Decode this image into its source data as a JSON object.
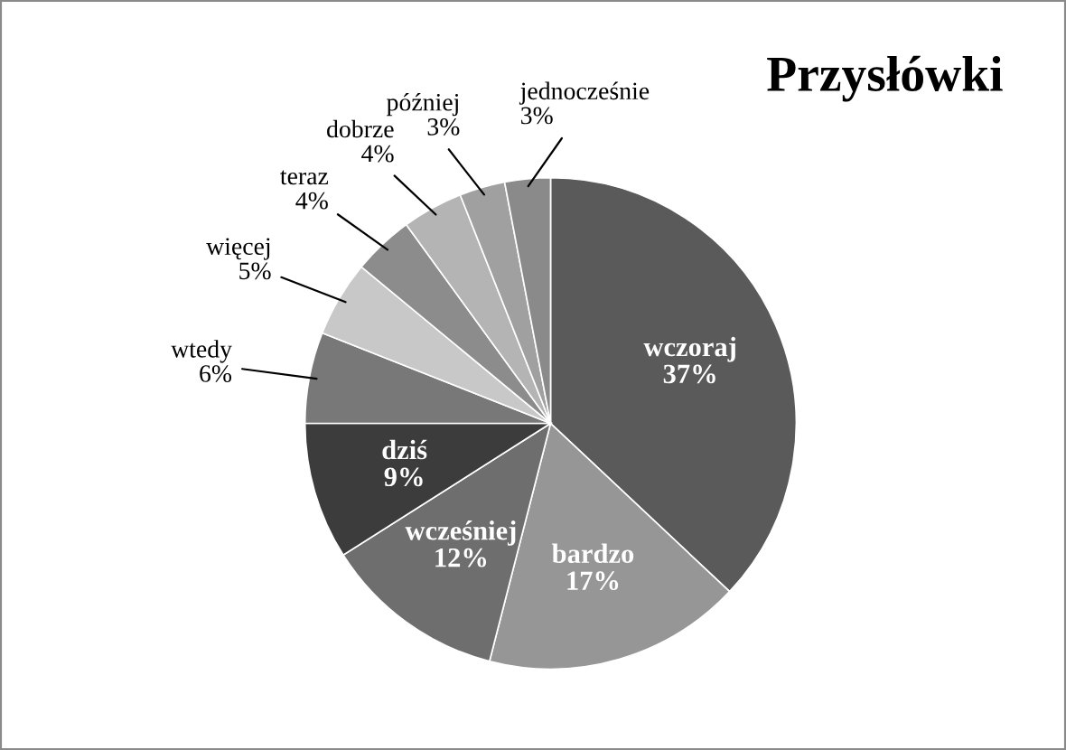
{
  "chart_data": {
    "type": "pie",
    "title": "Przysłówki",
    "categories": [
      "wczoraj",
      "bardzo",
      "wcześniej",
      "dziś",
      "wtedy",
      "więcej",
      "teraz",
      "dobrze",
      "później",
      "jednocześnie"
    ],
    "values": [
      37,
      17,
      12,
      9,
      6,
      5,
      4,
      4,
      3,
      3
    ],
    "value_labels": [
      "37%",
      "17%",
      "12%",
      "9%",
      "6%",
      "5%",
      "4%",
      "4%",
      "3%",
      "3%"
    ],
    "colors": [
      "#5a5a5a",
      "#969696",
      "#6e6e6e",
      "#3c3c3c",
      "#787878",
      "#c8c8c8",
      "#8c8c8c",
      "#b4b4b4",
      "#a0a0a0",
      "#8a8a8a"
    ],
    "legend": false
  }
}
